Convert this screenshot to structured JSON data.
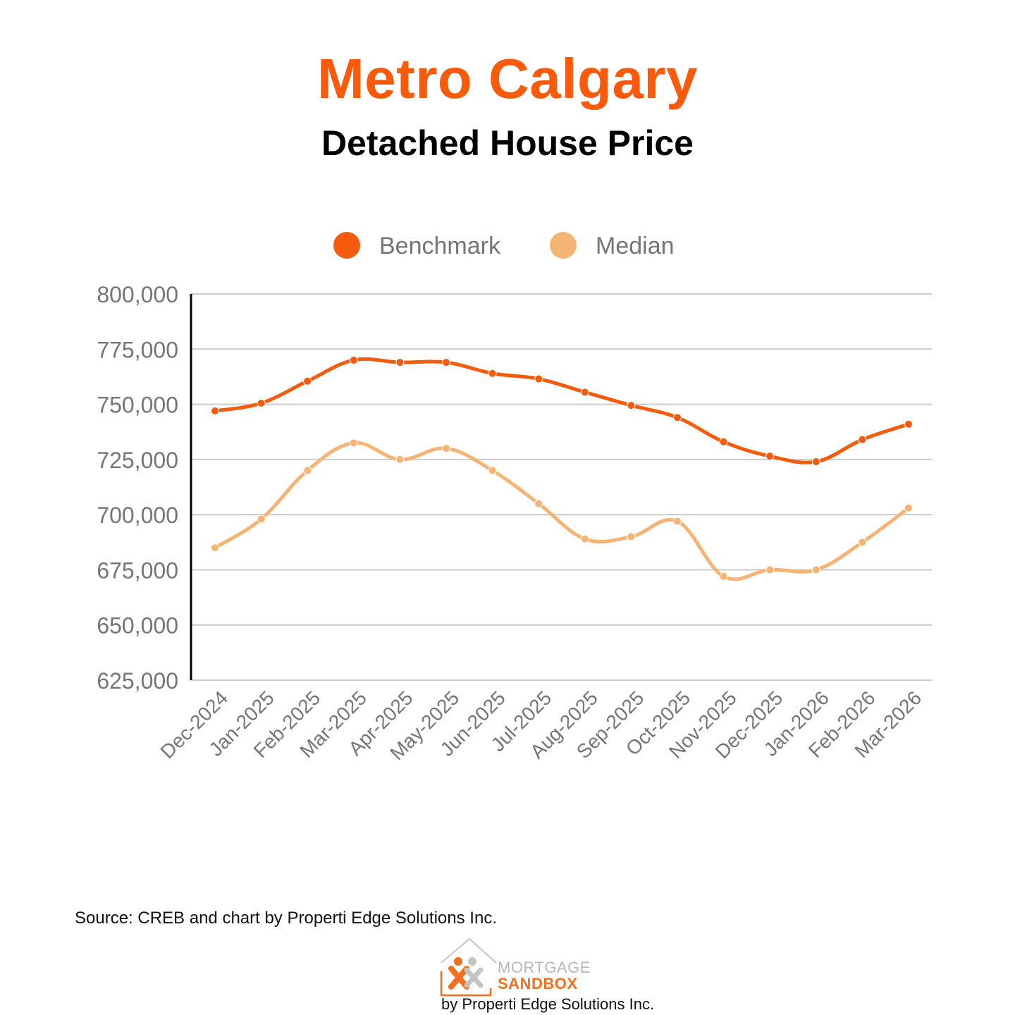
{
  "header": {
    "title": "Metro Calgary",
    "subtitle": "Detached House Price"
  },
  "footer": {
    "source": "Source: CREB and chart by Properti Edge Solutions Inc."
  },
  "logo": {
    "line1": "MORTGAGE",
    "line2": "SANDBOX",
    "byline": "by Properti Edge Solutions Inc.",
    "icon": "house-people-icon"
  },
  "colors": {
    "title": "#fa5a0a",
    "benchmark": "#f45b0c",
    "median": "#f5b474",
    "grid": "#cccccc",
    "axis_text": "#757575"
  },
  "chart_data": {
    "type": "line",
    "title": "",
    "xlabel": "",
    "ylabel": "",
    "legend_position": "top-center",
    "grid": true,
    "ylim": [
      625000,
      800000
    ],
    "yticks": [
      "625,000",
      "650,000",
      "675,000",
      "700,000",
      "725,000",
      "750,000",
      "775,000",
      "800,000"
    ],
    "categories": [
      "Dec-2024",
      "Jan-2025",
      "Feb-2025",
      "Mar-2025",
      "Apr-2025",
      "May-2025",
      "Jun-2025",
      "Jul-2025",
      "Aug-2025",
      "Sep-2025",
      "Oct-2025",
      "Nov-2025",
      "Dec-2025",
      "Jan-2026",
      "Feb-2026",
      "Mar-2026"
    ],
    "series": [
      {
        "name": "Benchmark",
        "color": "#f45b0c",
        "values": [
          747000,
          750500,
          760500,
          770000,
          769000,
          769000,
          764000,
          761500,
          755500,
          749500,
          744000,
          733000,
          726500,
          724000,
          734000,
          741000
        ]
      },
      {
        "name": "Median",
        "color": "#f5b474",
        "values": [
          685000,
          698000,
          720000,
          732500,
          725000,
          730000,
          720000,
          705000,
          689000,
          690000,
          697000,
          672000,
          675000,
          675000,
          687500,
          703000
        ]
      }
    ]
  }
}
